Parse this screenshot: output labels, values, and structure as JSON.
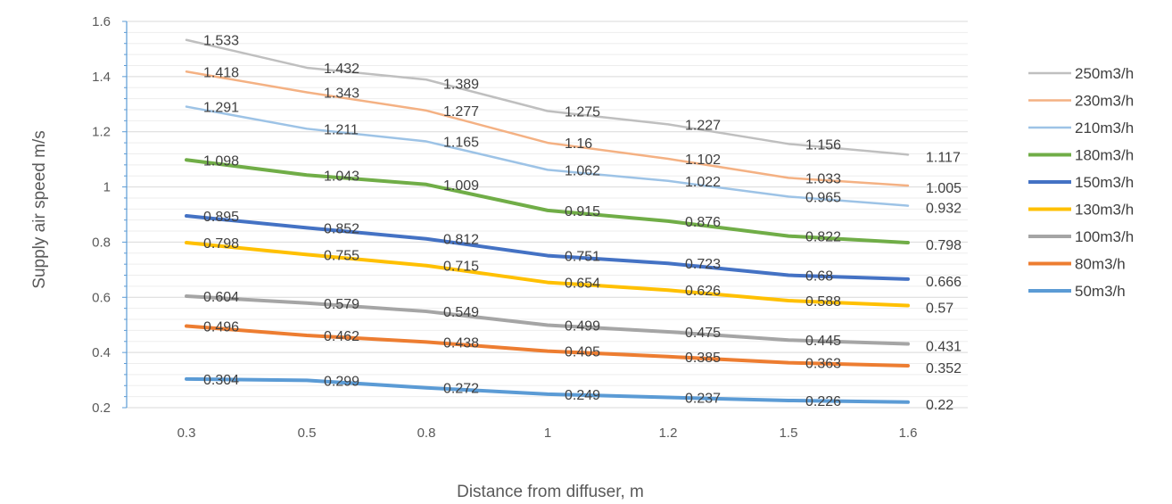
{
  "chart_data": {
    "type": "line",
    "title": "",
    "xlabel": "Distance from diffuser, m",
    "ylabel": "Supply air speed m/s",
    "categories": [
      "0.3",
      "0.5",
      "0.8",
      "1",
      "1.2",
      "1.5",
      "1.6"
    ],
    "ylim": [
      0.2,
      1.6
    ],
    "yticks": [
      "0.2",
      "0.4",
      "0.6",
      "0.8",
      "1",
      "1.2",
      "1.4",
      "1.6"
    ],
    "grid": true,
    "legend_position": "right",
    "series": [
      {
        "name": "250m3/h",
        "color": "#BFBFBF",
        "values": [
          1.533,
          1.432,
          1.389,
          1.275,
          1.227,
          1.156,
          1.117
        ],
        "labels": [
          "1.533",
          "1.432",
          "1.389",
          "1.275",
          "1.227",
          "1.156",
          "1.117"
        ]
      },
      {
        "name": "230m3/h",
        "color": "#F4B183",
        "values": [
          1.418,
          1.343,
          1.277,
          1.16,
          1.102,
          1.033,
          1.005
        ],
        "labels": [
          "1.418",
          "1.343",
          "1.277",
          "1.16",
          "1.102",
          "1.033",
          "1.005"
        ]
      },
      {
        "name": "210m3/h",
        "color": "#9DC3E6",
        "values": [
          1.291,
          1.211,
          1.165,
          1.062,
          1.022,
          0.965,
          0.932
        ],
        "labels": [
          "1.291",
          "1.211",
          "1.165",
          "1.062",
          "1.022",
          "0.965",
          "0.932"
        ]
      },
      {
        "name": "180m3/h",
        "color": "#70AD47",
        "values": [
          1.098,
          1.043,
          1.009,
          0.915,
          0.876,
          0.822,
          0.798
        ],
        "labels": [
          "1.098",
          "1.043",
          "1.009",
          "0.915",
          "0.876",
          "0.822",
          "0.798"
        ]
      },
      {
        "name": "150m3/h",
        "color": "#4472C4",
        "values": [
          0.895,
          0.852,
          0.812,
          0.751,
          0.723,
          0.68,
          0.666
        ],
        "labels": [
          "0.895",
          "0.852",
          "0.812",
          "0.751",
          "0.723",
          "0.68",
          "0.666"
        ]
      },
      {
        "name": "130m3/h",
        "color": "#FFC000",
        "values": [
          0.798,
          0.755,
          0.715,
          0.654,
          0.626,
          0.588,
          0.57
        ],
        "labels": [
          "0.798",
          "0.755",
          "0.715",
          "0.654",
          "0.626",
          "0.588",
          "0.57"
        ]
      },
      {
        "name": "100m3/h",
        "color": "#A5A5A5",
        "values": [
          0.604,
          0.579,
          0.549,
          0.499,
          0.475,
          0.445,
          0.431
        ],
        "labels": [
          "0.604",
          "0.579",
          "0.549",
          "0.499",
          "0.475",
          "0.445",
          "0.431"
        ]
      },
      {
        "name": "80m3/h",
        "color": "#ED7D31",
        "values": [
          0.496,
          0.462,
          0.438,
          0.405,
          0.385,
          0.363,
          0.352
        ],
        "labels": [
          "0.496",
          "0.462",
          "0.438",
          "0.405",
          "0.385",
          "0.363",
          "0.352"
        ]
      },
      {
        "name": "50m3/h",
        "color": "#5B9BD5",
        "values": [
          0.304,
          0.299,
          0.272,
          0.249,
          0.237,
          0.226,
          0.22
        ],
        "labels": [
          "0.304",
          "0.299",
          "0.272",
          "0.249",
          "0.237",
          "0.226",
          "0.22"
        ]
      }
    ]
  }
}
